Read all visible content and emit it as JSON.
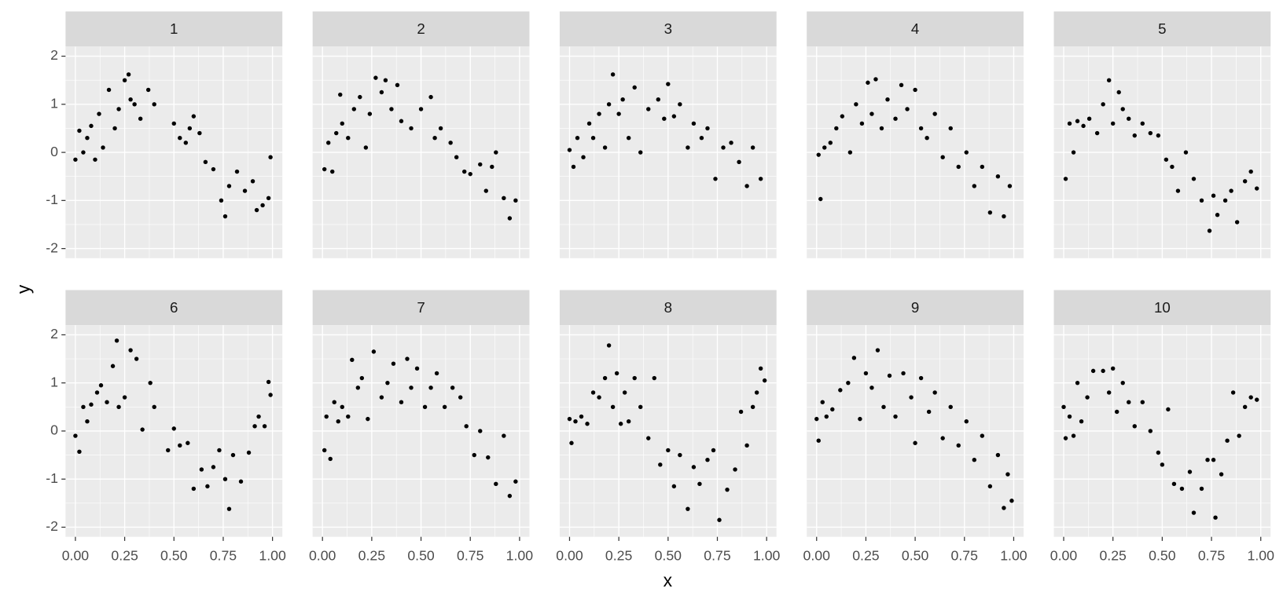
{
  "chart_data": {
    "type": "scatter",
    "x_label": "x",
    "y_label": "y",
    "xlim": [
      -0.05,
      1.05
    ],
    "ylim": [
      -2.2,
      2.2
    ],
    "xticks": [
      {
        "value": 0,
        "label": "0.00"
      },
      {
        "value": 0.25,
        "label": "0.25"
      },
      {
        "value": 0.5,
        "label": "0.50"
      },
      {
        "value": 0.75,
        "label": "0.75"
      },
      {
        "value": 1,
        "label": "1.00"
      }
    ],
    "yticks": [
      -2,
      -1,
      0,
      1,
      2
    ],
    "grid": true,
    "color": "#000000",
    "panels": [
      {
        "title": "1",
        "x": [
          0.0,
          0.02,
          0.04,
          0.06,
          0.08,
          0.1,
          0.12,
          0.14,
          0.17,
          0.2,
          0.22,
          0.25,
          0.27,
          0.28,
          0.3,
          0.33,
          0.37,
          0.4,
          0.5,
          0.53,
          0.56,
          0.58,
          0.6,
          0.63,
          0.66,
          0.7,
          0.74,
          0.76,
          0.78,
          0.82,
          0.86,
          0.9,
          0.92,
          0.95,
          0.98,
          0.99
        ],
        "y": [
          -0.15,
          0.45,
          0.0,
          0.3,
          0.55,
          -0.15,
          0.8,
          0.1,
          1.3,
          0.5,
          0.9,
          1.5,
          1.62,
          1.1,
          1.0,
          0.7,
          1.3,
          1.0,
          0.6,
          0.3,
          0.2,
          0.5,
          0.75,
          0.4,
          -0.2,
          -0.35,
          -1.0,
          -1.33,
          -0.7,
          -0.4,
          -0.8,
          -0.6,
          -1.2,
          -1.1,
          -0.95,
          -0.1
        ]
      },
      {
        "title": "2",
        "x": [
          0.01,
          0.03,
          0.05,
          0.07,
          0.09,
          0.1,
          0.13,
          0.16,
          0.19,
          0.22,
          0.24,
          0.27,
          0.3,
          0.32,
          0.35,
          0.38,
          0.4,
          0.45,
          0.5,
          0.55,
          0.57,
          0.6,
          0.65,
          0.68,
          0.72,
          0.75,
          0.8,
          0.83,
          0.86,
          0.88,
          0.92,
          0.95,
          0.98
        ],
        "y": [
          -0.35,
          0.2,
          -0.4,
          0.4,
          1.2,
          0.6,
          0.3,
          0.9,
          1.15,
          0.1,
          0.8,
          1.55,
          1.25,
          1.5,
          0.9,
          1.4,
          0.65,
          0.5,
          0.9,
          1.15,
          0.3,
          0.5,
          0.2,
          -0.1,
          -0.4,
          -0.45,
          -0.25,
          -0.8,
          -0.3,
          0.0,
          -0.95,
          -1.37,
          -1.0
        ]
      },
      {
        "title": "3",
        "x": [
          0.0,
          0.02,
          0.04,
          0.07,
          0.1,
          0.12,
          0.15,
          0.18,
          0.2,
          0.22,
          0.25,
          0.27,
          0.3,
          0.33,
          0.36,
          0.4,
          0.45,
          0.48,
          0.5,
          0.53,
          0.56,
          0.6,
          0.63,
          0.67,
          0.7,
          0.74,
          0.78,
          0.82,
          0.86,
          0.9,
          0.93,
          0.97
        ],
        "y": [
          0.05,
          -0.3,
          0.3,
          -0.1,
          0.6,
          0.3,
          0.8,
          0.1,
          1.0,
          1.62,
          0.8,
          1.1,
          0.3,
          1.35,
          0.0,
          0.9,
          1.1,
          0.7,
          1.42,
          0.75,
          1.0,
          0.1,
          0.6,
          0.3,
          0.5,
          -0.55,
          0.1,
          0.2,
          -0.2,
          -0.7,
          0.1,
          -0.55
        ]
      },
      {
        "title": "4",
        "x": [
          0.01,
          0.02,
          0.04,
          0.07,
          0.1,
          0.13,
          0.17,
          0.2,
          0.23,
          0.26,
          0.28,
          0.3,
          0.33,
          0.36,
          0.4,
          0.43,
          0.46,
          0.5,
          0.53,
          0.56,
          0.6,
          0.64,
          0.68,
          0.72,
          0.76,
          0.8,
          0.84,
          0.88,
          0.92,
          0.95,
          0.98
        ],
        "y": [
          -0.05,
          -0.97,
          0.1,
          0.2,
          0.5,
          0.75,
          0.0,
          1.0,
          0.6,
          1.45,
          0.8,
          1.52,
          0.5,
          1.1,
          0.7,
          1.4,
          0.9,
          1.3,
          0.5,
          0.3,
          0.8,
          -0.1,
          0.5,
          -0.3,
          0.0,
          -0.7,
          -0.3,
          -1.25,
          -0.5,
          -1.33,
          -0.7
        ]
      },
      {
        "title": "5",
        "x": [
          0.01,
          0.03,
          0.05,
          0.07,
          0.1,
          0.13,
          0.17,
          0.2,
          0.23,
          0.25,
          0.28,
          0.3,
          0.33,
          0.36,
          0.4,
          0.44,
          0.48,
          0.52,
          0.55,
          0.58,
          0.62,
          0.66,
          0.7,
          0.74,
          0.76,
          0.78,
          0.82,
          0.85,
          0.88,
          0.92,
          0.95,
          0.98
        ],
        "y": [
          -0.55,
          0.6,
          0.0,
          0.65,
          0.55,
          0.7,
          0.4,
          1.0,
          1.5,
          0.6,
          1.25,
          0.9,
          0.7,
          0.35,
          0.6,
          0.4,
          0.35,
          -0.15,
          -0.3,
          -0.8,
          0.0,
          -0.55,
          -1.0,
          -1.63,
          -0.9,
          -1.3,
          -1.0,
          -0.8,
          -1.45,
          -0.6,
          -0.4,
          -0.75
        ]
      },
      {
        "title": "6",
        "x": [
          0.0,
          0.02,
          0.04,
          0.06,
          0.08,
          0.11,
          0.13,
          0.16,
          0.19,
          0.21,
          0.22,
          0.25,
          0.28,
          0.31,
          0.34,
          0.38,
          0.4,
          0.47,
          0.5,
          0.53,
          0.57,
          0.6,
          0.64,
          0.67,
          0.7,
          0.73,
          0.76,
          0.78,
          0.8,
          0.84,
          0.88,
          0.91,
          0.93,
          0.96,
          0.98,
          0.99
        ],
        "y": [
          -0.1,
          -0.43,
          0.5,
          0.2,
          0.55,
          0.8,
          0.95,
          0.6,
          1.35,
          1.88,
          0.5,
          0.7,
          1.68,
          1.5,
          0.03,
          1.0,
          0.5,
          -0.4,
          0.05,
          -0.3,
          -0.25,
          -1.2,
          -0.8,
          -1.15,
          -0.75,
          -0.4,
          -1.0,
          -1.62,
          -0.5,
          -1.05,
          -0.45,
          0.1,
          0.3,
          0.1,
          1.02,
          0.75
        ]
      },
      {
        "title": "7",
        "x": [
          0.01,
          0.02,
          0.04,
          0.06,
          0.08,
          0.1,
          0.13,
          0.15,
          0.18,
          0.2,
          0.23,
          0.26,
          0.3,
          0.33,
          0.36,
          0.4,
          0.43,
          0.45,
          0.48,
          0.52,
          0.55,
          0.58,
          0.62,
          0.66,
          0.7,
          0.73,
          0.77,
          0.8,
          0.84,
          0.88,
          0.92,
          0.95,
          0.98
        ],
        "y": [
          -0.4,
          0.3,
          -0.58,
          0.6,
          0.2,
          0.5,
          0.3,
          1.48,
          0.9,
          1.1,
          0.25,
          1.65,
          0.7,
          1.0,
          1.4,
          0.6,
          1.5,
          0.9,
          1.3,
          0.5,
          0.9,
          1.2,
          0.5,
          0.9,
          0.7,
          0.1,
          -0.5,
          0.0,
          -0.55,
          -1.1,
          -0.1,
          -1.35,
          -1.05
        ]
      },
      {
        "title": "8",
        "x": [
          0.0,
          0.01,
          0.03,
          0.06,
          0.09,
          0.12,
          0.15,
          0.18,
          0.2,
          0.22,
          0.24,
          0.26,
          0.28,
          0.3,
          0.33,
          0.36,
          0.4,
          0.43,
          0.46,
          0.5,
          0.53,
          0.56,
          0.6,
          0.63,
          0.66,
          0.7,
          0.73,
          0.76,
          0.8,
          0.84,
          0.87,
          0.9,
          0.93,
          0.95,
          0.97,
          0.99
        ],
        "y": [
          0.25,
          -0.25,
          0.2,
          0.3,
          0.15,
          0.8,
          0.7,
          1.1,
          1.78,
          0.5,
          1.2,
          0.15,
          0.8,
          0.2,
          1.1,
          0.5,
          -0.15,
          1.1,
          -0.7,
          -0.4,
          -1.15,
          -0.5,
          -1.62,
          -0.75,
          -1.1,
          -0.6,
          -0.4,
          -1.85,
          -1.22,
          -0.8,
          0.4,
          -0.3,
          0.5,
          0.8,
          1.3,
          1.05
        ]
      },
      {
        "title": "9",
        "x": [
          0.0,
          0.01,
          0.03,
          0.05,
          0.08,
          0.12,
          0.16,
          0.19,
          0.22,
          0.25,
          0.28,
          0.31,
          0.34,
          0.37,
          0.4,
          0.44,
          0.48,
          0.5,
          0.53,
          0.57,
          0.6,
          0.64,
          0.68,
          0.72,
          0.76,
          0.8,
          0.84,
          0.88,
          0.92,
          0.95,
          0.97,
          0.99
        ],
        "y": [
          0.25,
          -0.2,
          0.6,
          0.3,
          0.45,
          0.85,
          1.0,
          1.52,
          0.25,
          1.2,
          0.9,
          1.68,
          0.5,
          1.15,
          0.3,
          1.2,
          0.7,
          -0.25,
          1.1,
          0.4,
          0.8,
          -0.15,
          0.5,
          -0.3,
          0.2,
          -0.6,
          -0.1,
          -1.15,
          -0.5,
          -1.6,
          -0.9,
          -1.45
        ]
      },
      {
        "title": "10",
        "x": [
          0.0,
          0.01,
          0.03,
          0.05,
          0.07,
          0.09,
          0.12,
          0.15,
          0.2,
          0.23,
          0.25,
          0.27,
          0.3,
          0.33,
          0.36,
          0.4,
          0.44,
          0.48,
          0.5,
          0.53,
          0.56,
          0.6,
          0.64,
          0.66,
          0.7,
          0.73,
          0.76,
          0.77,
          0.8,
          0.83,
          0.86,
          0.89,
          0.92,
          0.95,
          0.98
        ],
        "y": [
          0.5,
          -0.15,
          0.3,
          -0.1,
          1.0,
          0.2,
          0.7,
          1.25,
          1.25,
          0.8,
          1.3,
          0.4,
          1.0,
          0.6,
          0.1,
          0.6,
          0.0,
          -0.45,
          -0.7,
          0.45,
          -1.1,
          -1.2,
          -0.85,
          -1.7,
          -1.2,
          -0.6,
          -0.6,
          -1.8,
          -0.9,
          -0.2,
          0.8,
          -0.1,
          0.5,
          0.7,
          0.65
        ]
      }
    ]
  }
}
